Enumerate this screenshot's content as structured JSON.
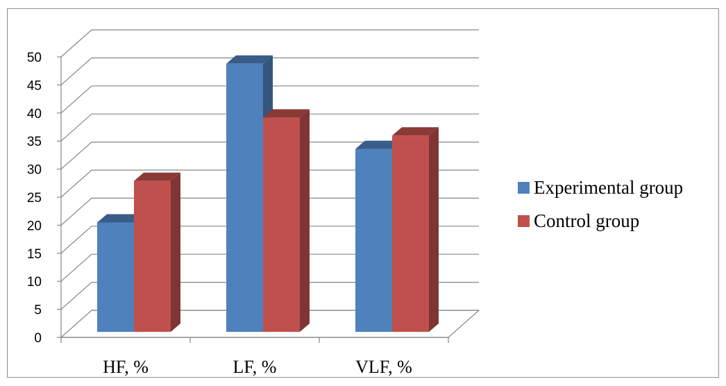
{
  "chart_data": {
    "type": "bar",
    "categories": [
      "HF, %",
      "LF, %",
      "VLF, %"
    ],
    "series": [
      {
        "name": "Experimental group",
        "values": [
          19.5,
          47.8,
          32.6
        ],
        "color": "#4f81bd"
      },
      {
        "name": "Control group",
        "values": [
          26.9,
          38.2,
          35.0
        ],
        "color": "#c0504d"
      }
    ],
    "ylim": [
      0,
      50
    ],
    "yticks": [
      "0",
      "5",
      "10",
      "15",
      "20",
      "25",
      "30",
      "35",
      "40",
      "45",
      "50"
    ],
    "grid": true,
    "legend_position": "right",
    "style": "3d-clustered-column"
  }
}
